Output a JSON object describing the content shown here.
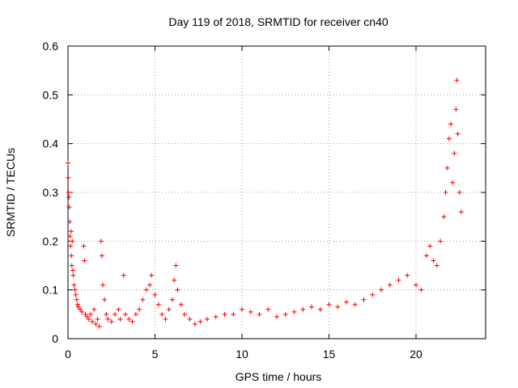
{
  "chart_data": {
    "type": "scatter",
    "title": "Day 119 of 2018, SRMTID for receiver cn40",
    "xlabel": "GPS time / hours",
    "ylabel": "SRMTID / TECUs",
    "xlim": [
      0,
      24
    ],
    "ylim": [
      0,
      0.6
    ],
    "xticks": [
      0,
      5,
      10,
      15,
      20
    ],
    "yticks": [
      0,
      0.1,
      0.2,
      0.3,
      0.4,
      0.5,
      0.6
    ],
    "xtick_labels": [
      "0",
      "5",
      "10",
      "15",
      "20"
    ],
    "ytick_labels": [
      "0",
      "0.1",
      "0.2",
      "0.3",
      "0.4",
      "0.5",
      "0.6"
    ],
    "grid": true,
    "marker": "+",
    "color": "#ff0000",
    "series": [
      {
        "name": "SRMTID",
        "points": [
          [
            0.0,
            0.36
          ],
          [
            0.02,
            0.33
          ],
          [
            0.03,
            0.3
          ],
          [
            0.05,
            0.29
          ],
          [
            0.07,
            0.27
          ],
          [
            0.1,
            0.24
          ],
          [
            0.12,
            0.21
          ],
          [
            0.15,
            0.19
          ],
          [
            0.18,
            0.22
          ],
          [
            0.2,
            0.17
          ],
          [
            0.22,
            0.15
          ],
          [
            0.25,
            0.2
          ],
          [
            0.28,
            0.14
          ],
          [
            0.3,
            0.13
          ],
          [
            0.35,
            0.11
          ],
          [
            0.4,
            0.1
          ],
          [
            0.45,
            0.09
          ],
          [
            0.5,
            0.08
          ],
          [
            0.55,
            0.07
          ],
          [
            0.6,
            0.065
          ],
          [
            0.7,
            0.06
          ],
          [
            0.8,
            0.055
          ],
          [
            0.9,
            0.19
          ],
          [
            0.95,
            0.16
          ],
          [
            1.0,
            0.05
          ],
          [
            1.1,
            0.045
          ],
          [
            1.2,
            0.04
          ],
          [
            1.3,
            0.05
          ],
          [
            1.4,
            0.035
          ],
          [
            1.5,
            0.06
          ],
          [
            1.6,
            0.03
          ],
          [
            1.7,
            0.04
          ],
          [
            1.8,
            0.025
          ],
          [
            1.9,
            0.2
          ],
          [
            1.95,
            0.17
          ],
          [
            2.0,
            0.11
          ],
          [
            2.1,
            0.08
          ],
          [
            2.2,
            0.05
          ],
          [
            2.3,
            0.04
          ],
          [
            2.5,
            0.035
          ],
          [
            2.7,
            0.05
          ],
          [
            2.9,
            0.06
          ],
          [
            3.0,
            0.04
          ],
          [
            3.2,
            0.13
          ],
          [
            3.3,
            0.05
          ],
          [
            3.5,
            0.04
          ],
          [
            3.7,
            0.035
          ],
          [
            3.9,
            0.05
          ],
          [
            4.1,
            0.06
          ],
          [
            4.3,
            0.08
          ],
          [
            4.5,
            0.1
          ],
          [
            4.7,
            0.11
          ],
          [
            4.8,
            0.13
          ],
          [
            5.0,
            0.09
          ],
          [
            5.2,
            0.07
          ],
          [
            5.4,
            0.05
          ],
          [
            5.6,
            0.04
          ],
          [
            5.8,
            0.06
          ],
          [
            6.0,
            0.08
          ],
          [
            6.1,
            0.12
          ],
          [
            6.2,
            0.15
          ],
          [
            6.3,
            0.1
          ],
          [
            6.5,
            0.07
          ],
          [
            6.7,
            0.05
          ],
          [
            7.0,
            0.04
          ],
          [
            7.3,
            0.03
          ],
          [
            7.6,
            0.035
          ],
          [
            8.0,
            0.04
          ],
          [
            8.5,
            0.045
          ],
          [
            9.0,
            0.05
          ],
          [
            9.5,
            0.05
          ],
          [
            10.0,
            0.06
          ],
          [
            10.5,
            0.055
          ],
          [
            11.0,
            0.05
          ],
          [
            11.5,
            0.06
          ],
          [
            12.0,
            0.045
          ],
          [
            12.5,
            0.05
          ],
          [
            13.0,
            0.055
          ],
          [
            13.5,
            0.06
          ],
          [
            14.0,
            0.065
          ],
          [
            14.5,
            0.06
          ],
          [
            15.0,
            0.07
          ],
          [
            15.5,
            0.065
          ],
          [
            16.0,
            0.075
          ],
          [
            16.5,
            0.07
          ],
          [
            17.0,
            0.08
          ],
          [
            17.5,
            0.09
          ],
          [
            18.0,
            0.1
          ],
          [
            18.5,
            0.11
          ],
          [
            19.0,
            0.12
          ],
          [
            19.5,
            0.13
          ],
          [
            20.0,
            0.11
          ],
          [
            20.3,
            0.1
          ],
          [
            20.6,
            0.17
          ],
          [
            20.8,
            0.19
          ],
          [
            21.0,
            0.16
          ],
          [
            21.2,
            0.15
          ],
          [
            21.4,
            0.2
          ],
          [
            21.6,
            0.25
          ],
          [
            21.7,
            0.3
          ],
          [
            21.8,
            0.35
          ],
          [
            21.9,
            0.41
          ],
          [
            22.0,
            0.44
          ],
          [
            22.1,
            0.32
          ],
          [
            22.2,
            0.38
          ],
          [
            22.3,
            0.47
          ],
          [
            22.35,
            0.53
          ],
          [
            22.4,
            0.42
          ],
          [
            22.5,
            0.3
          ],
          [
            22.6,
            0.26
          ]
        ]
      }
    ]
  }
}
